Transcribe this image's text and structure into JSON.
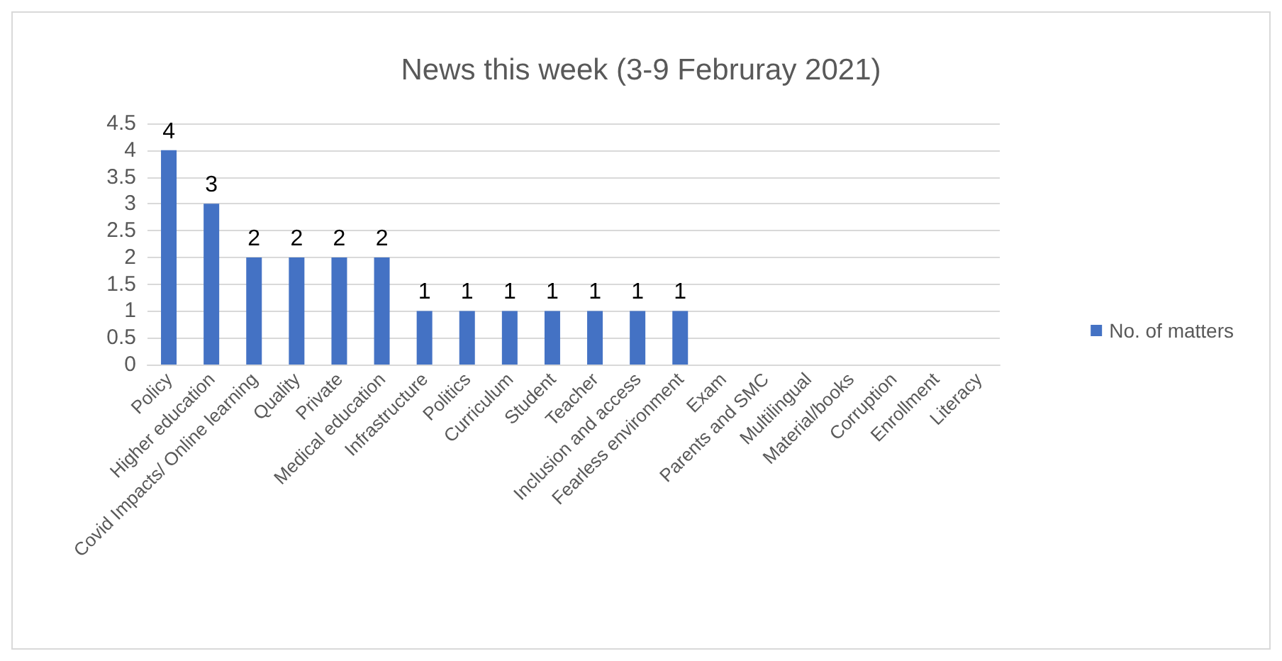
{
  "chart_data": {
    "type": "bar",
    "title": "News this week (3-9 Februray 2021)",
    "categories": [
      "Policy",
      "Higher education",
      "Covid Impacts/ Online learning",
      "Quality",
      "Private",
      "Medical education",
      "Infrastructure",
      "Politics",
      "Curriculum",
      "Student",
      "Teacher",
      "Inclusion and access",
      "Fearless environment",
      "Exam",
      "Parents and SMC",
      "Multilingual",
      "Material/books",
      "Corruption",
      "Enrollment",
      "Literacy"
    ],
    "series": [
      {
        "name": "No. of matters",
        "color": "#4472c4",
        "values": [
          4,
          3,
          2,
          2,
          2,
          2,
          1,
          1,
          1,
          1,
          1,
          1,
          1,
          0,
          0,
          0,
          0,
          0,
          0,
          0
        ],
        "value_labels": [
          "4",
          "3",
          "2",
          "2",
          "2",
          "2",
          "1",
          "1",
          "1",
          "1",
          "1",
          "1",
          "1",
          null,
          null,
          null,
          null,
          null,
          null,
          null
        ]
      }
    ],
    "ylim": [
      0,
      4.5
    ],
    "yticks": [
      0,
      0.5,
      1,
      1.5,
      2,
      2.5,
      3,
      3.5,
      4,
      4.5
    ],
    "grid": "y",
    "legend": "right"
  }
}
